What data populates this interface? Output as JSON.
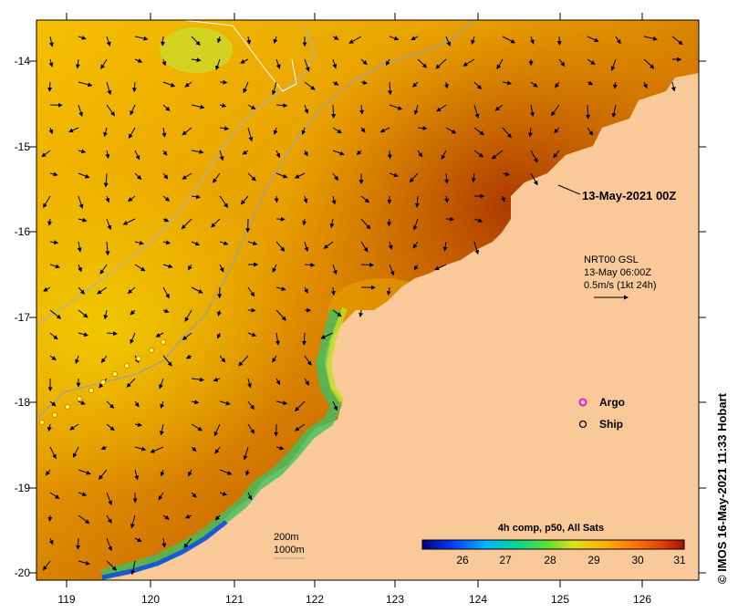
{
  "map": {
    "date_label": "13-May-2021 00Z",
    "currents": {
      "line1": "NRT00 GSL",
      "line2": "13-May 06:00Z",
      "line3": "0.5m/s (1kt 24h)"
    },
    "legend": {
      "argo_label": "Argo",
      "ship_label": "Ship",
      "argo_color": "#dd22dd",
      "ship_color": "#ffffff"
    },
    "contours": {
      "c200": "200m",
      "c1000": "1000m"
    },
    "colorbar": {
      "title": "4h comp, p50, All Sats",
      "ticks": [
        "26",
        "27",
        "28",
        "29",
        "30",
        "31"
      ],
      "colors": [
        "#00007a",
        "#0040ff",
        "#00b4ff",
        "#00d890",
        "#60e030",
        "#e0e020",
        "#ffb000",
        "#ff7000",
        "#e04000",
        "#a01000"
      ]
    },
    "credit": "© IMOS 16-May-2021 11:33 Hobart",
    "axes": {
      "lon_ticks": [
        "119",
        "120",
        "121",
        "122",
        "123",
        "124",
        "125",
        "126"
      ],
      "lat_ticks": [
        "-14",
        "-15",
        "-16",
        "-17",
        "-18",
        "-19",
        "-20"
      ]
    },
    "land_color": "#f9c99a"
  }
}
